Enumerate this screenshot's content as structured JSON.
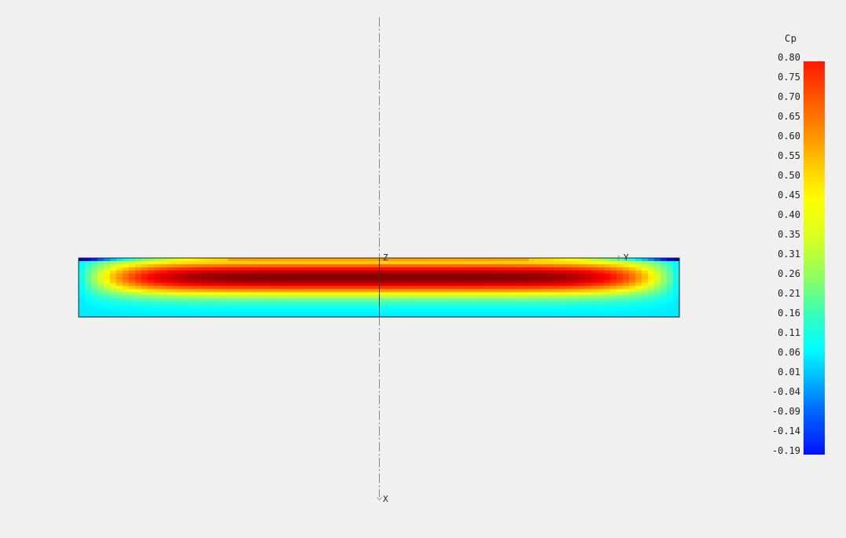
{
  "view": {
    "axes": {
      "z_label": "Z",
      "y_label": "Y",
      "x_label": "X"
    }
  },
  "colorbar": {
    "title": "Cp",
    "ticks": [
      "0.80",
      "0.75",
      "0.70",
      "0.65",
      "0.60",
      "0.55",
      "0.50",
      "0.45",
      "0.40",
      "0.35",
      "0.31",
      "0.26",
      "0.21",
      "0.16",
      "0.11",
      "0.06",
      "0.01",
      "-0.04",
      "-0.09",
      "-0.14",
      "-0.19"
    ],
    "range": [
      -0.19,
      0.8
    ],
    "colormap": "jet",
    "color_top": "#ff1a00",
    "color_bottom": "#0010ff"
  },
  "colors": {
    "background": "#f0f0f0",
    "axis_line": "#888888",
    "outline": "#222222"
  }
}
